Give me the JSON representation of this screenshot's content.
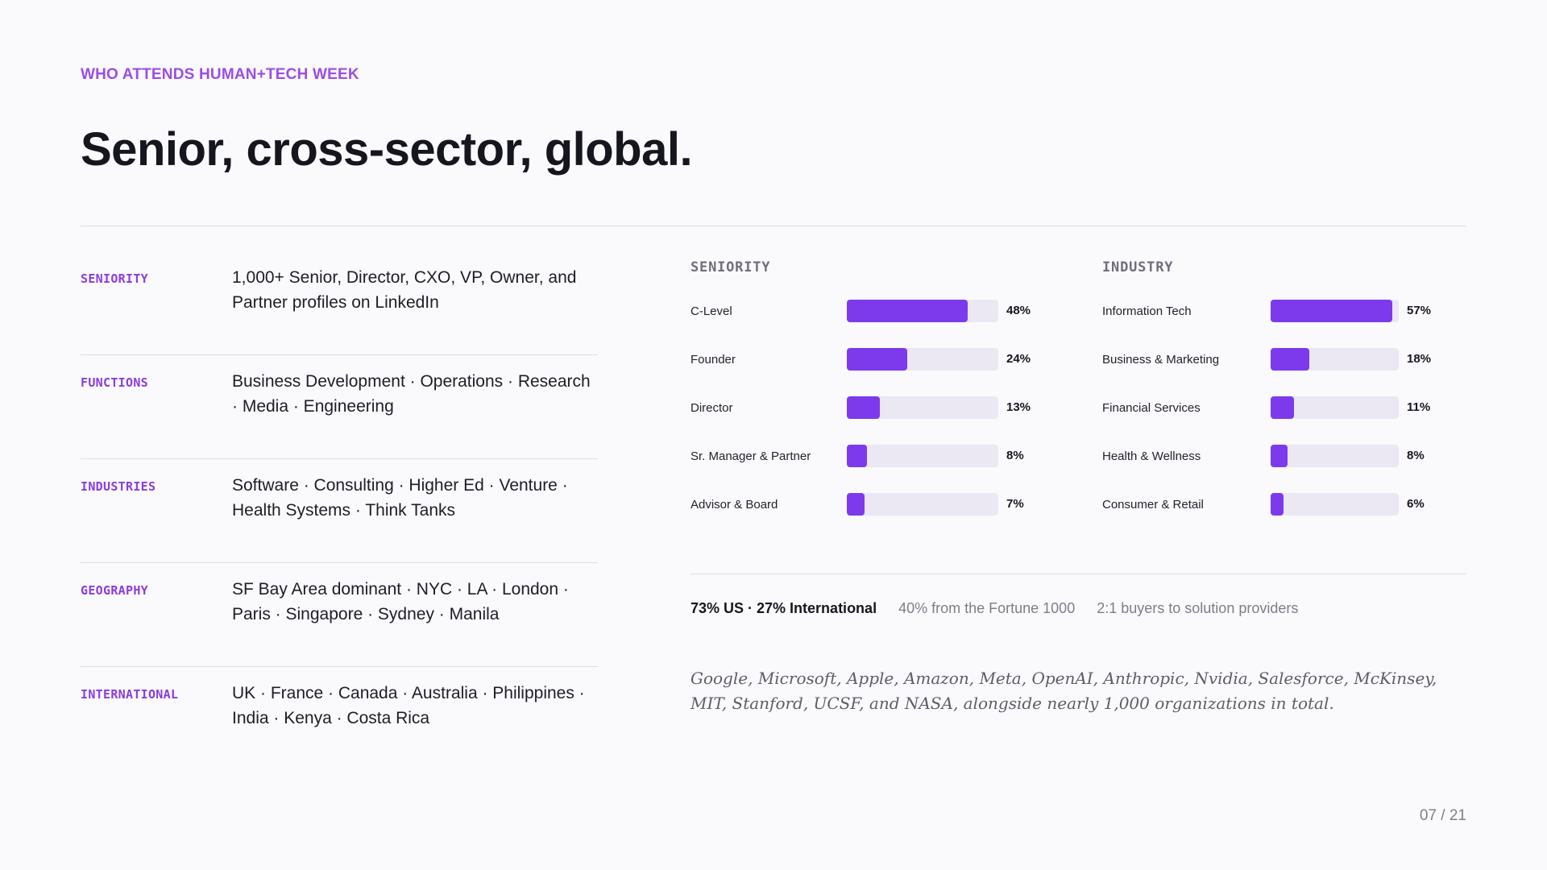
{
  "eyebrow": "WHO ATTENDS HUMAN+TECH WEEK",
  "title": "Senior, cross-sector, global.",
  "info_rows": [
    {
      "label": "SENIORITY",
      "text": "1,000+ Senior, Director, CXO, VP, Owner, and Partner profiles on LinkedIn"
    },
    {
      "label": "FUNCTIONS",
      "text": "Business Development · Operations · Research · Media · Engineering"
    },
    {
      "label": "INDUSTRIES",
      "text": "Software · Consulting · Higher Ed · Venture · Health Systems · Think Tanks"
    },
    {
      "label": "GEOGRAPHY",
      "text": "SF Bay Area dominant · NYC · LA · London · Paris · Singapore · Sydney · Manila"
    },
    {
      "label": "INTERNATIONAL",
      "text": "UK · France · Canada · Australia · Philippines · India · Kenya · Costa Rica"
    }
  ],
  "chart_data": [
    {
      "type": "bar",
      "title": "SENIORITY",
      "orientation": "horizontal",
      "categories": [
        "C-Level",
        "Founder",
        "Director",
        "Sr. Manager & Partner",
        "Advisor & Board"
      ],
      "values": [
        48,
        24,
        13,
        8,
        7
      ],
      "value_labels": [
        "48%",
        "24%",
        "13%",
        "8%",
        "7%"
      ],
      "xlim": [
        0,
        60
      ],
      "grid": false,
      "bar_color": "#7d3aed",
      "track_color": "#ebe7f3"
    },
    {
      "type": "bar",
      "title": "INDUSTRY",
      "orientation": "horizontal",
      "categories": [
        "Information Tech",
        "Business & Marketing",
        "Financial Services",
        "Health & Wellness",
        "Consumer & Retail"
      ],
      "values": [
        57,
        18,
        11,
        8,
        6
      ],
      "value_labels": [
        "57%",
        "18%",
        "11%",
        "8%",
        "6%"
      ],
      "xlim": [
        0,
        60
      ],
      "grid": false,
      "bar_color": "#7d3aed",
      "track_color": "#ebe7f3"
    }
  ],
  "stats": {
    "geo_split": "73% US · 27% International",
    "fortune": "40% from the Fortune 1000",
    "ratio": "2:1 buyers to solution providers"
  },
  "orgs_text": "Google, Microsoft, Apple, Amazon, Meta, OpenAI, Anthropic, Nvidia, Salesforce, McKinsey, MIT, Stanford, UCSF, and NASA, alongside nearly 1,000 organizations in total.",
  "page_number": "07 / 21",
  "colors": {
    "accent": "#7d3aed",
    "eyebrow": "#9b4de6",
    "label": "#8a3be0"
  }
}
